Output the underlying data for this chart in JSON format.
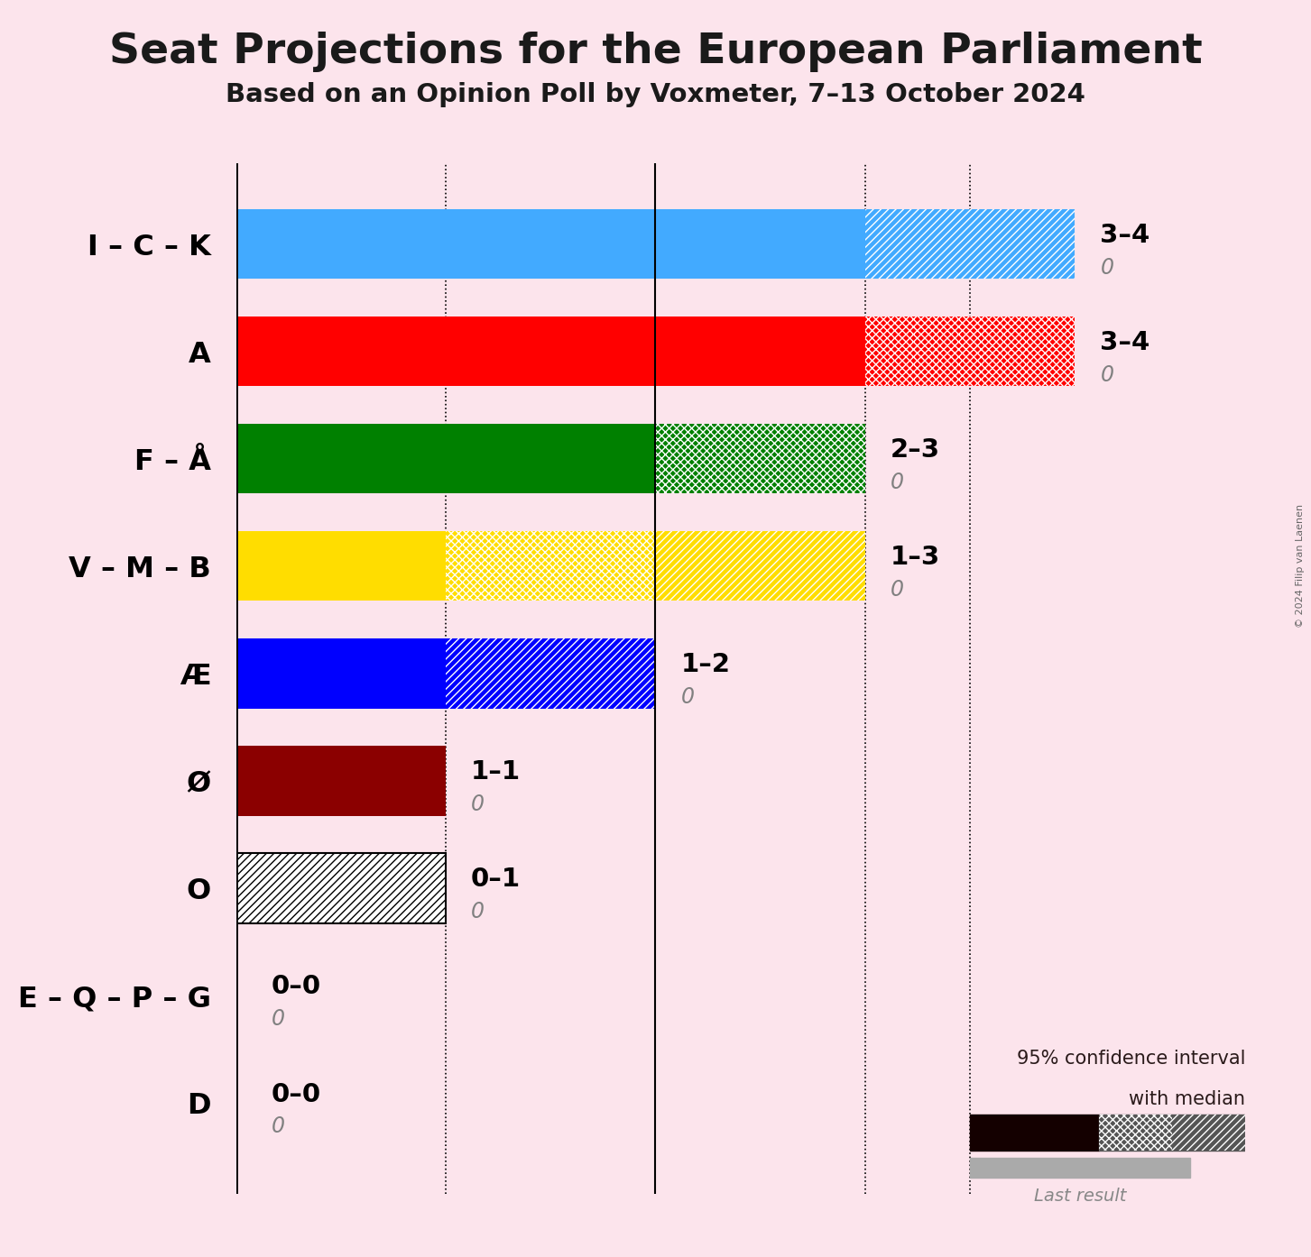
{
  "title": "Seat Projections for the European Parliament",
  "subtitle": "Based on an Opinion Poll by Voxmeter, 7–13 October 2024",
  "copyright": "© 2024 Filip van Laenen",
  "background_color": "#fce4ec",
  "parties": [
    "I – C – K",
    "A",
    "F – Å",
    "V – M – B",
    "Æ",
    "Ø",
    "O",
    "E – Q – P – G",
    "D"
  ],
  "colors": [
    "#42aaff",
    "#ff0000",
    "#008000",
    "#ffdd00",
    "#0000ff",
    "#8b0000",
    "#000000",
    "#000000",
    "#000000"
  ],
  "median_low": [
    3,
    3,
    2,
    1,
    1,
    1,
    0,
    0,
    0
  ],
  "median_high": [
    4,
    4,
    3,
    3,
    2,
    1,
    1,
    0,
    0
  ],
  "last_result": [
    0,
    0,
    0,
    0,
    0,
    0,
    0,
    0,
    0
  ],
  "labels": [
    "3–4",
    "3–4",
    "2–3",
    "1–3",
    "1–2",
    "1–1",
    "0–1",
    "0–0",
    "0–0"
  ],
  "xmax": 4.5,
  "dotted_lines": [
    1,
    3
  ],
  "solid_line": 2,
  "median_mark": 3.5,
  "bar_height": 0.65
}
